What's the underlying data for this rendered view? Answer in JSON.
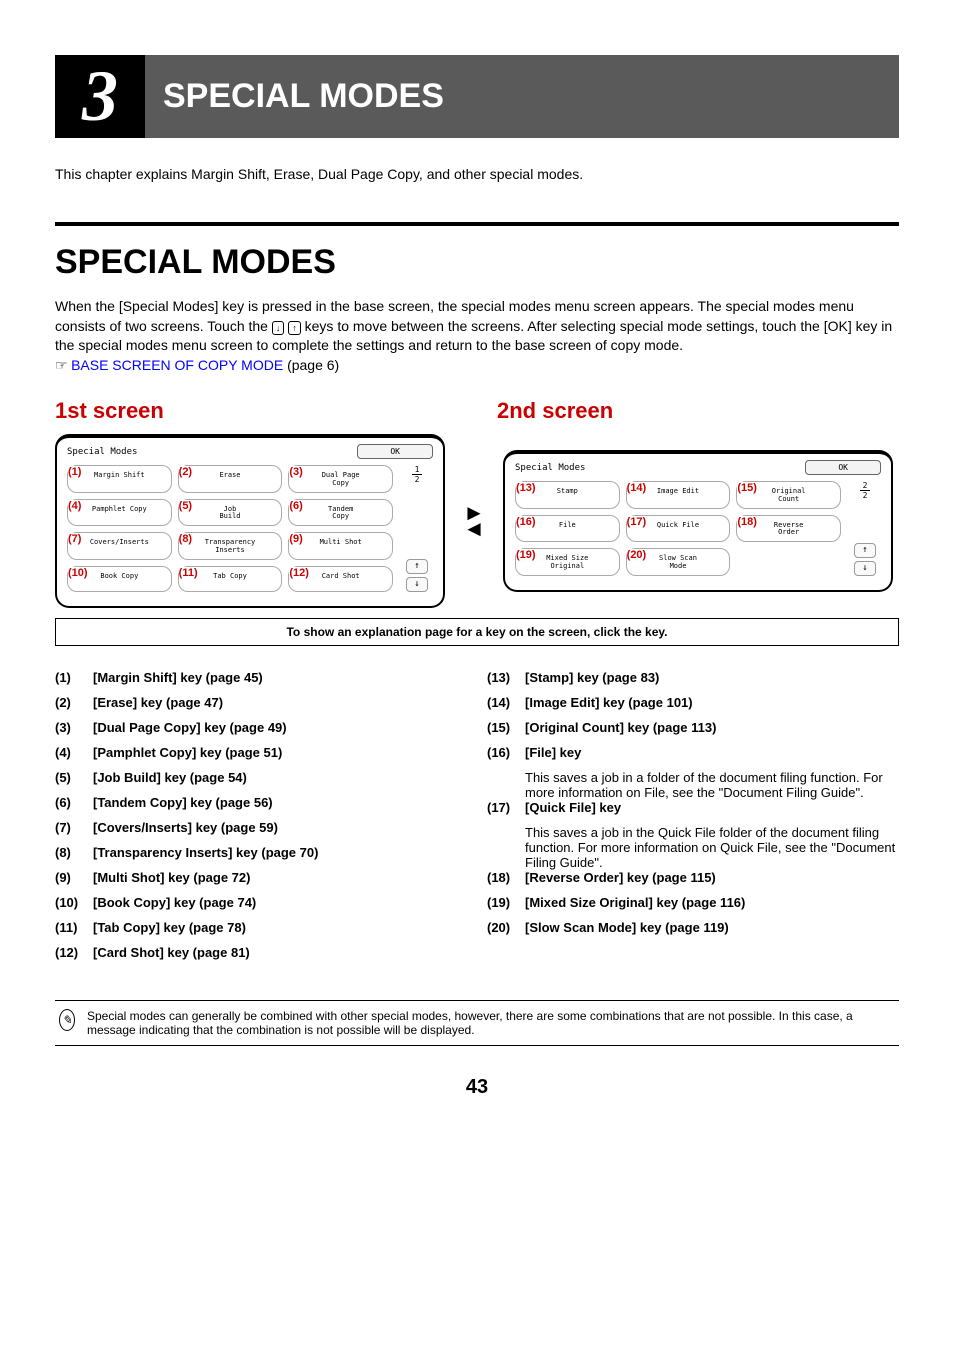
{
  "chapter": {
    "num": "3",
    "title": "SPECIAL MODES"
  },
  "intro": "This chapter explains Margin Shift, Erase, Dual Page Copy, and other special modes.",
  "section_title": "SPECIAL MODES",
  "body1": "When the [Special Modes] key is pressed in the base screen, the special modes menu screen appears. The special modes menu consists of two screens. Touch the ",
  "body2": " keys to move between the screens. After selecting special mode settings, touch the [OK] key in the special modes menu screen to complete the settings and return to the base screen of copy mode.",
  "link_prefix": "☞ ",
  "link_text": "BASE SCREEN OF COPY MODE",
  "link_page": " (page 6)",
  "subhead1": "1st screen",
  "subhead2": "2nd screen",
  "panel_title": "Special Modes",
  "ok_label": "OK",
  "frac1_top": "1",
  "frac1_bot": "2",
  "frac2_top": "2",
  "frac2_bot": "2",
  "up_glyph": "↑",
  "down_glyph": "↓",
  "arrow_left": "◄",
  "arrow_right": "►",
  "keys1": [
    {
      "n": "(1)",
      "t": "Margin Shift"
    },
    {
      "n": "(2)",
      "t": "Erase"
    },
    {
      "n": "(3)",
      "t": "Dual Page\nCopy"
    },
    {
      "n": "(4)",
      "t": "Pamphlet Copy"
    },
    {
      "n": "(5)",
      "t": "Job\nBuild"
    },
    {
      "n": "(6)",
      "t": "Tandem\nCopy"
    },
    {
      "n": "(7)",
      "t": "Covers/Inserts"
    },
    {
      "n": "(8)",
      "t": "Transparency\nInserts"
    },
    {
      "n": "(9)",
      "t": "Multi Shot"
    },
    {
      "n": "(10)",
      "t": "Book Copy"
    },
    {
      "n": "(11)",
      "t": "Tab Copy"
    },
    {
      "n": "(12)",
      "t": "Card Shot"
    }
  ],
  "keys2": [
    {
      "n": "(13)",
      "t": "Stamp"
    },
    {
      "n": "(14)",
      "t": "Image Edit"
    },
    {
      "n": "(15)",
      "t": "Original\nCount"
    },
    {
      "n": "(16)",
      "t": "File"
    },
    {
      "n": "(17)",
      "t": "Quick File"
    },
    {
      "n": "(18)",
      "t": "Reverse\nOrder"
    },
    {
      "n": "(19)",
      "t": "Mixed Size\nOriginal"
    },
    {
      "n": "(20)",
      "t": "Slow Scan\nMode"
    }
  ],
  "caption": "To show an explanation page for a key on the screen, click the key.",
  "list_left": [
    {
      "n": "(1)",
      "t": "[Margin Shift] key  (page 45)"
    },
    {
      "n": "(2)",
      "t": "[Erase] key (page 47)"
    },
    {
      "n": "(3)",
      "t": "[Dual Page Copy] key (page 49)"
    },
    {
      "n": "(4)",
      "t": "[Pamphlet Copy] key (page 51)"
    },
    {
      "n": "(5)",
      "t": "[Job Build] key (page 54)"
    },
    {
      "n": "(6)",
      "t": "[Tandem Copy] key (page 56)"
    },
    {
      "n": "(7)",
      "t": "[Covers/Inserts] key (page 59)"
    },
    {
      "n": "(8)",
      "t": "[Transparency Inserts] key (page 70)"
    },
    {
      "n": "(9)",
      "t": "[Multi Shot] key (page 72)"
    },
    {
      "n": "(10)",
      "t": "[Book Copy] key (page 74)"
    },
    {
      "n": "(11)",
      "t": "[Tab Copy] key (page 78)"
    },
    {
      "n": "(12)",
      "t": "[Card Shot] key (page 81)"
    }
  ],
  "list_right": [
    {
      "n": "(13)",
      "t": "[Stamp] key (page 83)"
    },
    {
      "n": "(14)",
      "t": "[Image Edit] key (page 101)"
    },
    {
      "n": "(15)",
      "t": "[Original Count] key (page 113)"
    },
    {
      "n": "(16)",
      "t": "[File] key",
      "d": "This saves a job in a folder of the document filing function. For more information on File, see the \"Document Filing Guide\"."
    },
    {
      "n": "(17)",
      "t": "[Quick File] key",
      "d": "This saves a job in the Quick File folder of the document filing function. For more information on Quick File, see the \"Document Filing Guide\"."
    },
    {
      "n": "(18)",
      "t": "[Reverse Order] key (page 115)"
    },
    {
      "n": "(19)",
      "t": "[Mixed Size Original] key (page 116)"
    },
    {
      "n": "(20)",
      "t": "[Slow Scan Mode] key (page 119)"
    }
  ],
  "note": "Special modes can generally be combined with other special modes, however, there are some combinations that are not possible. In this case, a message indicating that the combination is not possible will be displayed.",
  "note_icon": "✎",
  "page_num": "43"
}
